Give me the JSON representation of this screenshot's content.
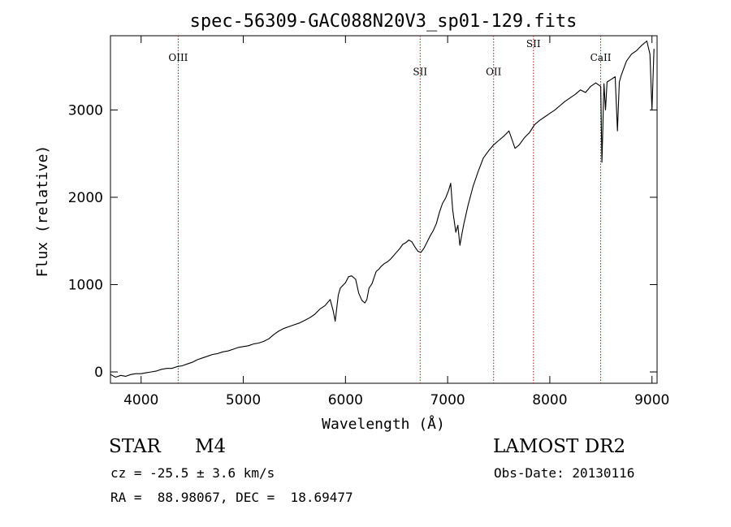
{
  "chart_data": {
    "type": "line",
    "title": "spec-56309-GAC088N20V3_sp01-129.fits",
    "xlabel": "Wavelength (Å)",
    "ylabel": "Flux (relative)",
    "xlim": [
      3700,
      9050
    ],
    "ylim": [
      -130,
      3850
    ],
    "x_ticks": [
      4000,
      5000,
      6000,
      7000,
      8000,
      9000
    ],
    "y_ticks": [
      0,
      1000,
      2000,
      3000
    ],
    "grid": false,
    "line_color": "#000000",
    "marker_color": "#a01818",
    "series": [
      {
        "x": [
          3700,
          3750,
          3800,
          3850,
          3900,
          3950,
          4000,
          4050,
          4100,
          4150,
          4200,
          4250,
          4300,
          4350,
          4400,
          4450,
          4500,
          4550,
          4600,
          4650,
          4700,
          4750,
          4800,
          4850,
          4900,
          4950,
          5000,
          5050,
          5100,
          5150,
          5200,
          5250,
          5300,
          5350,
          5400,
          5450,
          5500,
          5550,
          5600,
          5650,
          5700,
          5750,
          5800,
          5850,
          5880,
          5900,
          5930,
          5950,
          6000,
          6030,
          6060,
          6100,
          6130,
          6160,
          6190,
          6210,
          6230,
          6260,
          6280,
          6300,
          6330,
          6350,
          6380,
          6410,
          6440,
          6470,
          6500,
          6530,
          6560,
          6590,
          6620,
          6650,
          6680,
          6710,
          6740,
          6770,
          6800,
          6830,
          6860,
          6890,
          6920,
          6950,
          6980,
          7010,
          7030,
          7050,
          7080,
          7100,
          7120,
          7140,
          7160,
          7200,
          7250,
          7300,
          7350,
          7400,
          7450,
          7500,
          7550,
          7600,
          7630,
          7660,
          7700,
          7750,
          7800,
          7850,
          7900,
          7950,
          8000,
          8050,
          8100,
          8150,
          8200,
          8250,
          8300,
          8350,
          8400,
          8450,
          8498,
          8510,
          8530,
          8545,
          8560,
          8600,
          8640,
          8662,
          8680,
          8700,
          8750,
          8800,
          8850,
          8900,
          8950,
          8980,
          9000,
          9020
        ],
        "values": [
          -30,
          -60,
          -40,
          -50,
          -30,
          -20,
          -20,
          -10,
          0,
          10,
          30,
          40,
          40,
          60,
          70,
          90,
          110,
          140,
          160,
          180,
          200,
          210,
          230,
          240,
          260,
          280,
          290,
          300,
          320,
          330,
          350,
          380,
          430,
          470,
          500,
          520,
          540,
          560,
          590,
          620,
          660,
          720,
          760,
          830,
          700,
          580,
          880,
          960,
          1020,
          1090,
          1100,
          1060,
          900,
          820,
          790,
          830,
          960,
          1010,
          1080,
          1150,
          1180,
          1210,
          1240,
          1260,
          1290,
          1330,
          1370,
          1410,
          1460,
          1480,
          1510,
          1490,
          1430,
          1380,
          1370,
          1420,
          1490,
          1560,
          1620,
          1700,
          1830,
          1930,
          1990,
          2080,
          2160,
          1850,
          1600,
          1680,
          1450,
          1580,
          1700,
          1910,
          2130,
          2300,
          2450,
          2530,
          2600,
          2650,
          2700,
          2760,
          2660,
          2560,
          2600,
          2680,
          2740,
          2830,
          2880,
          2920,
          2960,
          3000,
          3050,
          3100,
          3140,
          3180,
          3230,
          3200,
          3270,
          3310,
          3270,
          2400,
          3300,
          3000,
          3320,
          3350,
          3380,
          2760,
          3320,
          3400,
          3560,
          3640,
          3680,
          3740,
          3790,
          3640,
          3000,
          3700
        ]
      }
    ],
    "line_markers": [
      {
        "label": "OIII",
        "x": 4363,
        "label_y": 3560
      },
      {
        "label": "SII",
        "x": 6731,
        "label_y": 3400
      },
      {
        "label": "OII",
        "x": 7450,
        "label_y": 3400
      },
      {
        "label": "SII",
        "x": 7840,
        "label_y": 3720
      },
      {
        "label": "CaII",
        "x": 8498,
        "label_y": 3560
      }
    ]
  },
  "info": {
    "object_class": "STAR",
    "subclass": "M4",
    "survey": "LAMOST DR2",
    "cz": "cz = -25.5 ± 3.6 km/s",
    "obs_date": "Obs-Date: 20130116",
    "coords": "RA =  88.98067, DEC =  18.69477"
  }
}
